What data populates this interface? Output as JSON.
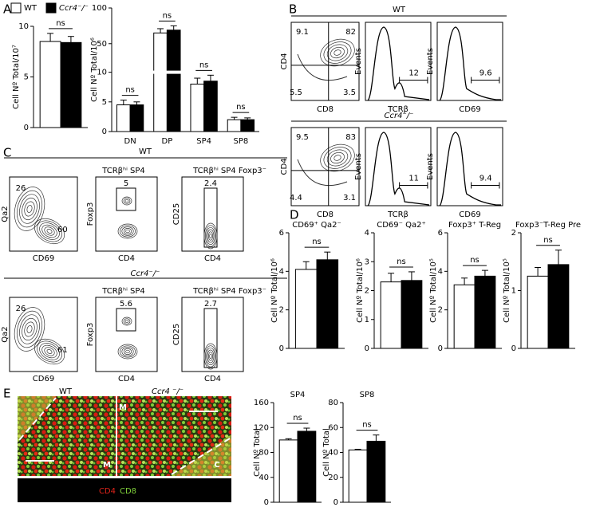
{
  "figure_labels": [
    "A",
    "B",
    "C",
    "D",
    "E"
  ],
  "chart_data": [
    {
      "type": "bar",
      "ylabel": "Cell Nº Total/10⁷",
      "categories": [
        null
      ],
      "series": [
        {
          "name": "WT",
          "color": "#ffffff",
          "values": [
            8.5
          ],
          "errors": [
            0.8
          ]
        },
        {
          "name": "Ccr4⁻/⁻",
          "color": "#000000",
          "values": [
            8.4
          ],
          "errors": [
            0.6
          ]
        }
      ],
      "ylim": [
        0,
        10
      ],
      "yticks": [
        0,
        5,
        10
      ],
      "annotations": [
        "ns"
      ]
    },
    {
      "type": "bar",
      "ylabel": "Cell Nº Total/10⁶",
      "categories": [
        "DN",
        "DP",
        "SP4",
        "SP8"
      ],
      "series": [
        {
          "color": "#ffffff",
          "values": [
            4.5,
            65,
            8,
            2
          ],
          "errors": [
            0.8,
            6,
            1,
            0.4
          ]
        },
        {
          "color": "#000000",
          "values": [
            4.5,
            69,
            8.5,
            2
          ],
          "errors": [
            0.5,
            6,
            1,
            0.3
          ]
        }
      ],
      "ylim": [
        0,
        100
      ],
      "ybreak": 10,
      "yticks": [
        0,
        5,
        10,
        50,
        100
      ],
      "annotations": [
        "ns",
        "ns",
        "ns",
        "ns"
      ]
    },
    {
      "type": "bar",
      "title": "CD69⁺ Qa2⁻",
      "ylabel": "Cell Nº Total/10⁶",
      "categories": [
        null
      ],
      "series": [
        {
          "color": "#ffffff",
          "values": [
            4.1
          ],
          "errors": [
            0.4
          ]
        },
        {
          "color": "#000000",
          "values": [
            4.6
          ],
          "errors": [
            0.4
          ]
        }
      ],
      "ylim": [
        0,
        6
      ],
      "yticks": [
        0,
        2,
        4,
        6
      ],
      "annotations": [
        "ns"
      ]
    },
    {
      "type": "bar",
      "title": "CD69⁻ Qa2⁺",
      "ylabel": "Cell Nº Total/10⁶",
      "categories": [
        null
      ],
      "series": [
        {
          "color": "#ffffff",
          "values": [
            2.3
          ],
          "errors": [
            0.3
          ]
        },
        {
          "color": "#000000",
          "values": [
            2.35
          ],
          "errors": [
            0.3
          ]
        }
      ],
      "ylim": [
        0,
        4
      ],
      "yticks": [
        0,
        1,
        2,
        3,
        4
      ],
      "annotations": [
        "ns"
      ]
    },
    {
      "type": "bar",
      "title": "Foxp3⁺ T-Reg",
      "ylabel": "Cell Nº Total/10⁵",
      "categories": [
        null
      ],
      "series": [
        {
          "color": "#ffffff",
          "values": [
            3.3
          ],
          "errors": [
            0.35
          ]
        },
        {
          "color": "#000000",
          "values": [
            3.75
          ],
          "errors": [
            0.3
          ]
        }
      ],
      "ylim": [
        0,
        6
      ],
      "yticks": [
        0,
        2,
        4,
        6
      ],
      "annotations": [
        "ns"
      ]
    },
    {
      "type": "bar",
      "title": "Foxp3⁻T-Reg Pre",
      "ylabel": "Cell Nº Total/10⁵",
      "categories": [
        null
      ],
      "series": [
        {
          "color": "#ffffff",
          "values": [
            1.25
          ],
          "errors": [
            0.15
          ]
        },
        {
          "color": "#000000",
          "values": [
            1.45
          ],
          "errors": [
            0.25
          ]
        }
      ],
      "ylim": [
        0,
        2
      ],
      "yticks": [
        0,
        1,
        2
      ],
      "annotations": [
        "ns"
      ]
    },
    {
      "type": "bar",
      "title": "SP4",
      "ylabel": "Cell Nº Total",
      "categories": [
        null
      ],
      "series": [
        {
          "color": "#ffffff",
          "values": [
            100
          ],
          "errors": [
            2
          ]
        },
        {
          "color": "#000000",
          "values": [
            114
          ],
          "errors": [
            5
          ]
        }
      ],
      "ylim": [
        0,
        160
      ],
      "yticks": [
        0,
        40,
        80,
        120,
        160
      ],
      "annotations": [
        "ns"
      ]
    },
    {
      "type": "bar",
      "title": "SP8",
      "ylabel": "Cell Nº Total",
      "categories": [
        null
      ],
      "series": [
        {
          "color": "#ffffff",
          "values": [
            42
          ],
          "errors": [
            0.5
          ]
        },
        {
          "color": "#000000",
          "values": [
            49
          ],
          "errors": [
            5
          ]
        }
      ],
      "ylim": [
        0,
        80
      ],
      "yticks": [
        0,
        20,
        40,
        60,
        80
      ],
      "annotations": [
        "ns"
      ]
    }
  ],
  "flow_b": {
    "axes": {
      "cd4": "CD4",
      "cd8": "CD8",
      "events": "Events",
      "tcrb": "TCRβ",
      "cd69": "CD69"
    },
    "groups": [
      {
        "title": "WT",
        "quadrants": [
          9.1,
          82,
          5.5,
          3.5
        ],
        "tcrb": 12,
        "cd69": 9.6
      },
      {
        "title": "Ccr4⁻/⁻",
        "quadrants": [
          9.5,
          83,
          4.4,
          3.1
        ],
        "tcrb": 11,
        "cd69": 9.4
      }
    ]
  },
  "flow_c": {
    "axes": {
      "qa2": "Qa2",
      "cd69": "CD69",
      "foxp3": "Foxp3",
      "cd4": "CD4",
      "cd25": "CD25"
    },
    "groups": [
      {
        "title": "WT",
        "header1": "TCRβʰⁱ SP4",
        "header2": "TCRβʰⁱ SP4 Foxp3⁻",
        "qa2": 26,
        "cd69": 60,
        "foxp3": 5,
        "cd25": 2.4
      },
      {
        "title": "Ccr4⁻/⁻",
        "header1": "TCRβʰⁱ SP4",
        "header2": "TCRβʰⁱ SP4 Foxp3⁻",
        "qa2": 26,
        "cd69": 61,
        "foxp3": 5.6,
        "cd25": 2.7
      }
    ]
  },
  "micrograph": {
    "wt": "WT",
    "ko": "Ccr4 ⁻/⁻",
    "regions": [
      "M",
      "M",
      "C"
    ],
    "stains": [
      "CD4",
      "CD8"
    ]
  }
}
